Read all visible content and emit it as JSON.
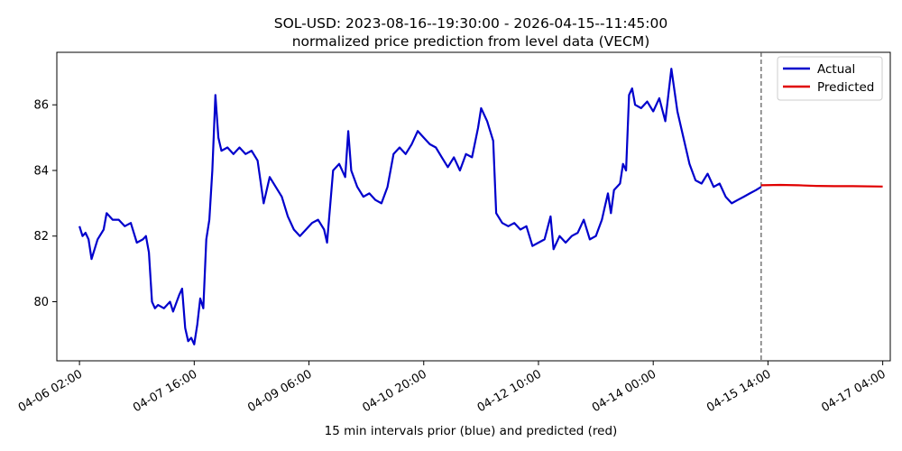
{
  "chart_data": {
    "type": "line",
    "title": "SOL-USD: 2023-08-16--19:30:00 - 2026-04-15--11:45:00",
    "subtitle": "normalized price prediction from level data (VECM)",
    "xlabel": "15 min intervals prior (blue) and predicted (red)",
    "ylabel": "",
    "x_ticks": [
      "04-06 02:00",
      "04-07 16:00",
      "04-09 06:00",
      "04-10 20:00",
      "04-12 10:00",
      "04-14 00:00",
      "04-15 14:00",
      "04-17 04:00"
    ],
    "y_ticks": [
      80,
      82,
      84,
      86
    ],
    "ylim": [
      78.2,
      87.6
    ],
    "xlim": [
      "04-05 18:30",
      "04-17 06:30"
    ],
    "forecast_start": "04-15 11:45",
    "legend_position": "top-right",
    "grid": false,
    "series": [
      {
        "name": "Actual",
        "color": "#0000cc",
        "points": [
          [
            "04-06 02:00",
            82.3
          ],
          [
            "04-06 03:00",
            82.0
          ],
          [
            "04-06 04:00",
            82.1
          ],
          [
            "04-06 05:00",
            81.9
          ],
          [
            "04-06 06:00",
            81.3
          ],
          [
            "04-06 08:00",
            81.9
          ],
          [
            "04-06 10:00",
            82.2
          ],
          [
            "04-06 11:00",
            82.7
          ],
          [
            "04-06 13:00",
            82.5
          ],
          [
            "04-06 15:00",
            82.5
          ],
          [
            "04-06 17:00",
            82.3
          ],
          [
            "04-06 19:00",
            82.4
          ],
          [
            "04-06 21:00",
            81.8
          ],
          [
            "04-06 23:00",
            81.9
          ],
          [
            "04-07 00:00",
            82.0
          ],
          [
            "04-07 01:00",
            81.5
          ],
          [
            "04-07 02:00",
            80.0
          ],
          [
            "04-07 03:00",
            79.8
          ],
          [
            "04-07 04:00",
            79.9
          ],
          [
            "04-07 06:00",
            79.8
          ],
          [
            "04-07 08:00",
            80.0
          ],
          [
            "04-07 09:00",
            79.7
          ],
          [
            "04-07 11:00",
            80.2
          ],
          [
            "04-07 12:00",
            80.4
          ],
          [
            "04-07 13:00",
            79.2
          ],
          [
            "04-07 14:00",
            78.8
          ],
          [
            "04-07 15:00",
            78.9
          ],
          [
            "04-07 16:00",
            78.7
          ],
          [
            "04-07 17:00",
            79.3
          ],
          [
            "04-07 18:00",
            80.1
          ],
          [
            "04-07 19:00",
            79.8
          ],
          [
            "04-07 20:00",
            81.9
          ],
          [
            "04-07 21:00",
            82.5
          ],
          [
            "04-07 22:00",
            84.0
          ],
          [
            "04-07 23:00",
            86.3
          ],
          [
            "04-08 00:00",
            85.0
          ],
          [
            "04-08 01:00",
            84.6
          ],
          [
            "04-08 03:00",
            84.7
          ],
          [
            "04-08 05:00",
            84.5
          ],
          [
            "04-08 07:00",
            84.7
          ],
          [
            "04-08 09:00",
            84.5
          ],
          [
            "04-08 11:00",
            84.6
          ],
          [
            "04-08 13:00",
            84.3
          ],
          [
            "04-08 15:00",
            83.0
          ],
          [
            "04-08 17:00",
            83.8
          ],
          [
            "04-08 19:00",
            83.5
          ],
          [
            "04-08 21:00",
            83.2
          ],
          [
            "04-08 23:00",
            82.6
          ],
          [
            "04-09 01:00",
            82.2
          ],
          [
            "04-09 03:00",
            82.0
          ],
          [
            "04-09 05:00",
            82.2
          ],
          [
            "04-09 07:00",
            82.4
          ],
          [
            "04-09 09:00",
            82.5
          ],
          [
            "04-09 11:00",
            82.2
          ],
          [
            "04-09 12:00",
            81.8
          ],
          [
            "04-09 14:00",
            84.0
          ],
          [
            "04-09 16:00",
            84.2
          ],
          [
            "04-09 18:00",
            83.8
          ],
          [
            "04-09 19:00",
            85.2
          ],
          [
            "04-09 20:00",
            84.0
          ],
          [
            "04-09 22:00",
            83.5
          ],
          [
            "04-10 00:00",
            83.2
          ],
          [
            "04-10 02:00",
            83.3
          ],
          [
            "04-10 04:00",
            83.1
          ],
          [
            "04-10 06:00",
            83.0
          ],
          [
            "04-10 08:00",
            83.5
          ],
          [
            "04-10 10:00",
            84.5
          ],
          [
            "04-10 12:00",
            84.7
          ],
          [
            "04-10 14:00",
            84.5
          ],
          [
            "04-10 16:00",
            84.8
          ],
          [
            "04-10 18:00",
            85.2
          ],
          [
            "04-10 20:00",
            85.0
          ],
          [
            "04-10 22:00",
            84.8
          ],
          [
            "04-11 00:00",
            84.7
          ],
          [
            "04-11 02:00",
            84.4
          ],
          [
            "04-11 04:00",
            84.1
          ],
          [
            "04-11 06:00",
            84.4
          ],
          [
            "04-11 08:00",
            84.0
          ],
          [
            "04-11 10:00",
            84.5
          ],
          [
            "04-11 12:00",
            84.4
          ],
          [
            "04-11 14:00",
            85.3
          ],
          [
            "04-11 15:00",
            85.9
          ],
          [
            "04-11 17:00",
            85.5
          ],
          [
            "04-11 19:00",
            84.9
          ],
          [
            "04-11 20:00",
            82.7
          ],
          [
            "04-11 22:00",
            82.4
          ],
          [
            "04-12 00:00",
            82.3
          ],
          [
            "04-12 02:00",
            82.4
          ],
          [
            "04-12 04:00",
            82.2
          ],
          [
            "04-12 06:00",
            82.3
          ],
          [
            "04-12 08:00",
            81.7
          ],
          [
            "04-12 10:00",
            81.8
          ],
          [
            "04-12 12:00",
            81.9
          ],
          [
            "04-12 14:00",
            82.6
          ],
          [
            "04-12 15:00",
            81.6
          ],
          [
            "04-12 17:00",
            82.0
          ],
          [
            "04-12 19:00",
            81.8
          ],
          [
            "04-12 21:00",
            82.0
          ],
          [
            "04-12 23:00",
            82.1
          ],
          [
            "04-13 01:00",
            82.5
          ],
          [
            "04-13 03:00",
            81.9
          ],
          [
            "04-13 05:00",
            82.0
          ],
          [
            "04-13 07:00",
            82.5
          ],
          [
            "04-13 08:00",
            82.9
          ],
          [
            "04-13 09:00",
            83.3
          ],
          [
            "04-13 10:00",
            82.7
          ],
          [
            "04-13 11:00",
            83.4
          ],
          [
            "04-13 13:00",
            83.6
          ],
          [
            "04-13 14:00",
            84.2
          ],
          [
            "04-13 15:00",
            84.0
          ],
          [
            "04-13 16:00",
            86.3
          ],
          [
            "04-13 17:00",
            86.5
          ],
          [
            "04-13 18:00",
            86.0
          ],
          [
            "04-13 20:00",
            85.9
          ],
          [
            "04-13 22:00",
            86.1
          ],
          [
            "04-14 00:00",
            85.8
          ],
          [
            "04-14 02:00",
            86.2
          ],
          [
            "04-14 04:00",
            85.5
          ],
          [
            "04-14 06:00",
            87.1
          ],
          [
            "04-14 08:00",
            85.8
          ],
          [
            "04-14 10:00",
            85.0
          ],
          [
            "04-14 12:00",
            84.2
          ],
          [
            "04-14 14:00",
            83.7
          ],
          [
            "04-14 16:00",
            83.6
          ],
          [
            "04-14 18:00",
            83.9
          ],
          [
            "04-14 20:00",
            83.5
          ],
          [
            "04-14 22:00",
            83.6
          ],
          [
            "04-15 00:00",
            83.2
          ],
          [
            "04-15 02:00",
            83.0
          ],
          [
            "04-15 04:00",
            83.1
          ],
          [
            "04-15 06:00",
            83.2
          ],
          [
            "04-15 08:00",
            83.3
          ],
          [
            "04-15 10:00",
            83.4
          ],
          [
            "04-15 11:45",
            83.5
          ]
        ]
      },
      {
        "name": "Predicted",
        "color": "#e00000",
        "points": [
          [
            "04-15 11:45",
            83.55
          ],
          [
            "04-15 18:00",
            83.56
          ],
          [
            "04-16 00:00",
            83.55
          ],
          [
            "04-16 06:00",
            83.53
          ],
          [
            "04-16 12:00",
            83.52
          ],
          [
            "04-16 18:00",
            83.52
          ],
          [
            "04-17 04:00",
            83.51
          ]
        ]
      }
    ]
  }
}
